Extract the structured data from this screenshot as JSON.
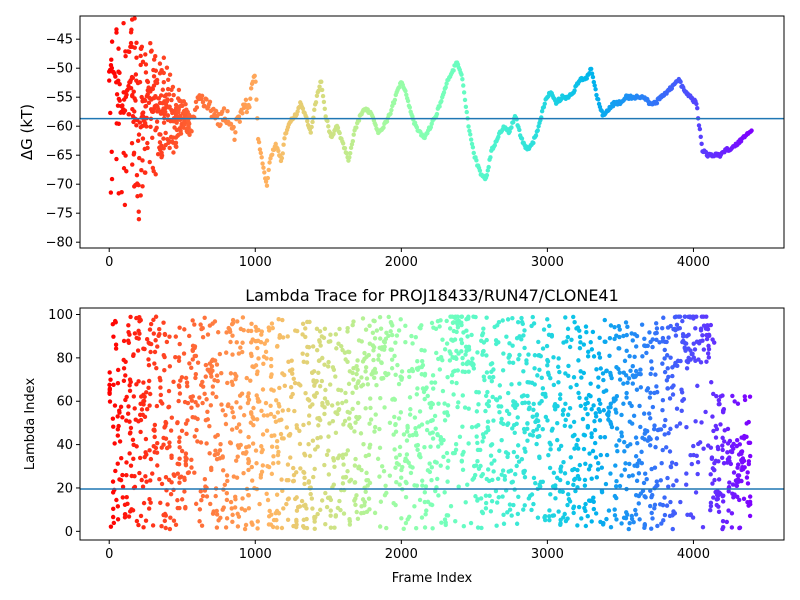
{
  "chart_data": [
    {
      "type": "scatter",
      "title": "",
      "xlabel": "",
      "ylabel": "ΔG (kT)",
      "xlim": [
        -200,
        4620
      ],
      "ylim": [
        -81,
        -41
      ],
      "xticks": [
        0,
        1000,
        2000,
        3000,
        4000
      ],
      "yticks": [
        -80,
        -75,
        -70,
        -65,
        -60,
        -55,
        -50,
        -45
      ],
      "hline": -58.7,
      "colormap": "rainbow",
      "series": [
        {
          "x_range": [
            0,
            4400
          ],
          "trace": [
            [
              0,
              -50
            ],
            [
              40,
              -52
            ],
            [
              80,
              -58
            ],
            [
              120,
              -55
            ],
            [
              160,
              -52
            ],
            [
              200,
              -62
            ],
            [
              260,
              -54
            ],
            [
              320,
              -58
            ],
            [
              380,
              -56
            ],
            [
              440,
              -59
            ],
            [
              500,
              -57
            ],
            [
              560,
              -60
            ],
            [
              620,
              -55
            ],
            [
              680,
              -56
            ],
            [
              740,
              -59
            ],
            [
              800,
              -58
            ],
            [
              860,
              -61
            ],
            [
              900,
              -58
            ],
            [
              960,
              -56
            ],
            [
              1000,
              -51
            ],
            [
              1020,
              -62
            ],
            [
              1060,
              -68
            ],
            [
              1080,
              -70
            ],
            [
              1100,
              -66
            ],
            [
              1140,
              -63
            ],
            [
              1180,
              -66
            ],
            [
              1200,
              -62
            ],
            [
              1240,
              -59
            ],
            [
              1280,
              -58
            ],
            [
              1310,
              -56
            ],
            [
              1340,
              -58
            ],
            [
              1380,
              -61
            ],
            [
              1420,
              -55
            ],
            [
              1450,
              -52
            ],
            [
              1480,
              -58
            ],
            [
              1520,
              -62
            ],
            [
              1560,
              -60
            ],
            [
              1600,
              -63
            ],
            [
              1640,
              -66
            ],
            [
              1680,
              -61
            ],
            [
              1720,
              -58
            ],
            [
              1760,
              -57
            ],
            [
              1800,
              -58
            ],
            [
              1840,
              -61
            ],
            [
              1880,
              -60
            ],
            [
              1920,
              -58
            ],
            [
              1960,
              -55
            ],
            [
              2000,
              -52
            ],
            [
              2040,
              -55
            ],
            [
              2080,
              -59
            ],
            [
              2120,
              -61
            ],
            [
              2160,
              -62
            ],
            [
              2200,
              -60
            ],
            [
              2240,
              -58
            ],
            [
              2280,
              -55
            ],
            [
              2320,
              -52
            ],
            [
              2380,
              -49
            ],
            [
              2420,
              -52
            ],
            [
              2460,
              -60
            ],
            [
              2500,
              -65
            ],
            [
              2540,
              -68
            ],
            [
              2580,
              -69
            ],
            [
              2620,
              -64
            ],
            [
              2660,
              -62
            ],
            [
              2700,
              -60
            ],
            [
              2740,
              -61
            ],
            [
              2780,
              -58
            ],
            [
              2820,
              -62
            ],
            [
              2860,
              -64
            ],
            [
              2900,
              -63
            ],
            [
              2940,
              -60
            ],
            [
              2980,
              -56
            ],
            [
              3020,
              -54
            ],
            [
              3060,
              -56
            ],
            [
              3100,
              -55
            ],
            [
              3140,
              -55
            ],
            [
              3180,
              -54
            ],
            [
              3220,
              -52
            ],
            [
              3260,
              -52
            ],
            [
              3300,
              -50
            ],
            [
              3340,
              -55
            ],
            [
              3380,
              -58
            ],
            [
              3420,
              -57
            ],
            [
              3460,
              -56
            ],
            [
              3500,
              -56
            ],
            [
              3540,
              -55
            ],
            [
              3580,
              -55
            ],
            [
              3620,
              -55
            ],
            [
              3660,
              -55
            ],
            [
              3700,
              -56
            ],
            [
              3740,
              -56
            ],
            [
              3780,
              -55
            ],
            [
              3820,
              -54
            ],
            [
              3860,
              -53
            ],
            [
              3900,
              -52
            ],
            [
              3940,
              -54
            ],
            [
              3980,
              -55
            ],
            [
              4020,
              -56
            ],
            [
              4060,
              -64
            ],
            [
              4100,
              -65
            ],
            [
              4140,
              -65
            ],
            [
              4180,
              -65
            ],
            [
              4220,
              -64
            ],
            [
              4260,
              -64
            ],
            [
              4300,
              -63
            ],
            [
              4340,
              -62
            ],
            [
              4380,
              -61
            ],
            [
              4400,
              -61
            ]
          ],
          "scatter_band": {
            "x_end": 550,
            "ymin": -81,
            "ymax": -42
          }
        }
      ]
    },
    {
      "type": "scatter",
      "title": "Lambda Trace for PROJ18433/RUN47/CLONE41",
      "xlabel": "Frame Index",
      "ylabel": "Lambda Index",
      "xlim": [
        -200,
        4620
      ],
      "ylim": [
        -4,
        103
      ],
      "xticks": [
        0,
        1000,
        2000,
        3000,
        4000
      ],
      "yticks": [
        0,
        20,
        40,
        60,
        80,
        100
      ],
      "hline": 19.5,
      "colormap": "rainbow",
      "series": [
        {
          "x_range": [
            0,
            4400
          ],
          "y_range": [
            1,
            99
          ],
          "clusters": [
            [
              1880,
              0.85
            ],
            [
              2420,
              0.9
            ],
            [
              3950,
              0.9
            ],
            [
              4050,
              0.95
            ],
            [
              4280,
              0.3
            ]
          ]
        }
      ]
    }
  ]
}
